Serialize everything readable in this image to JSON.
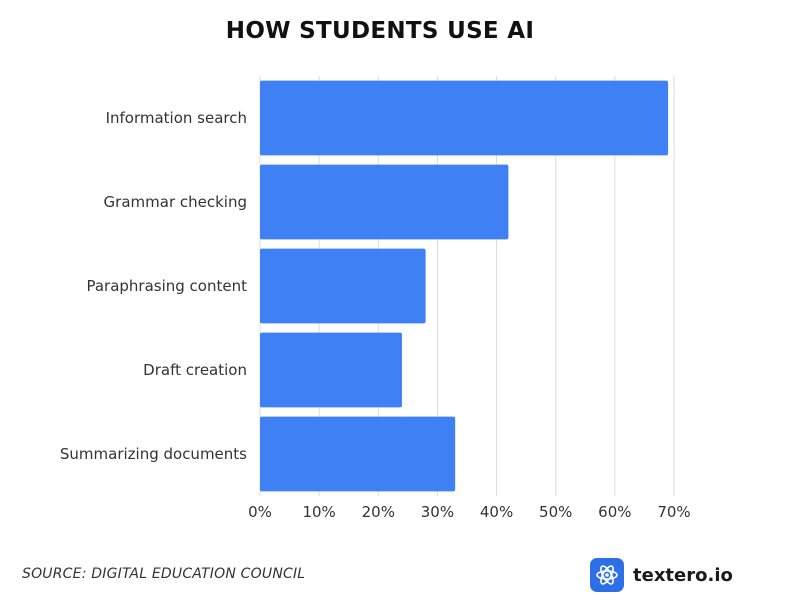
{
  "chart_data": {
    "type": "bar",
    "orientation": "horizontal",
    "title": "HOW STUDENTS USE AI",
    "categories": [
      "Information search",
      "Grammar checking",
      "Paraphrasing content",
      "Draft creation",
      "Summarizing documents"
    ],
    "values": [
      69,
      42,
      28,
      24,
      33
    ],
    "xlim": [
      0,
      70
    ],
    "x_ticks": [
      0,
      10,
      20,
      30,
      40,
      50,
      60,
      70
    ],
    "x_tick_labels": [
      "0%",
      "10%",
      "20%",
      "30%",
      "40%",
      "50%",
      "60%",
      "70%"
    ],
    "grid": true,
    "bar_color": "#4080f5",
    "grid_color": "#dcdcdc"
  },
  "footer": {
    "source": "SOURCE: DIGITAL EDUCATION COUNCIL",
    "brand_name": "textero.io",
    "brand_color": "#2f6fe6",
    "brand_icon": "atom-icon"
  }
}
